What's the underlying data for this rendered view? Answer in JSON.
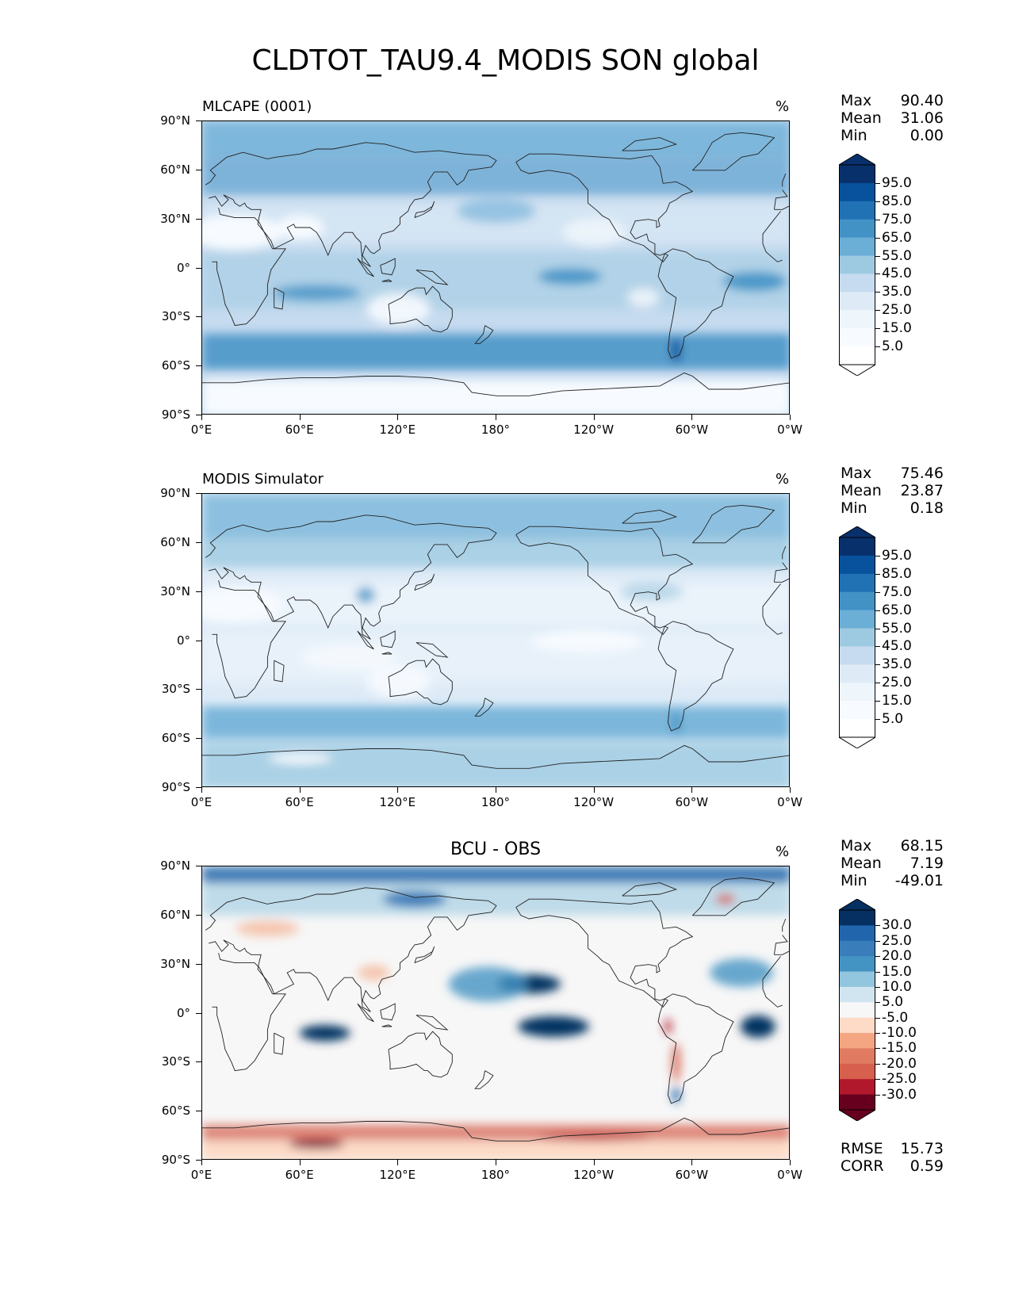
{
  "title": "CLDTOT_TAU9.4_MODIS SON global",
  "panels": [
    {
      "subtitle": "MLCAPE (0001)",
      "center_title": "",
      "units": "%",
      "stats": [
        {
          "label": "Max",
          "value": "90.40"
        },
        {
          "label": "Mean",
          "value": "31.06"
        },
        {
          "label": "Min",
          "value": "0.00"
        }
      ],
      "colorbar": {
        "labels": [
          "95.0",
          "85.0",
          "75.0",
          "65.0",
          "55.0",
          "45.0",
          "35.0",
          "25.0",
          "15.0",
          "5.0"
        ],
        "colors": [
          "#08306b",
          "#08519c",
          "#2171b5",
          "#4292c6",
          "#6baed6",
          "#9ecae1",
          "#c6dbef",
          "#deebf7",
          "#eef5fb",
          "#f7fbff",
          "#ffffff"
        ]
      },
      "extra": []
    },
    {
      "subtitle": "MODIS Simulator",
      "center_title": "",
      "units": "%",
      "stats": [
        {
          "label": "Max",
          "value": "75.46"
        },
        {
          "label": "Mean",
          "value": "23.87"
        },
        {
          "label": "Min",
          "value": "0.18"
        }
      ],
      "colorbar": {
        "labels": [
          "95.0",
          "85.0",
          "75.0",
          "65.0",
          "55.0",
          "45.0",
          "35.0",
          "25.0",
          "15.0",
          "5.0"
        ],
        "colors": [
          "#08306b",
          "#08519c",
          "#2171b5",
          "#4292c6",
          "#6baed6",
          "#9ecae1",
          "#c6dbef",
          "#deebf7",
          "#eef5fb",
          "#f7fbff",
          "#ffffff"
        ]
      },
      "extra": []
    },
    {
      "subtitle": "",
      "center_title": "BCU - OBS",
      "units": "%",
      "stats": [
        {
          "label": "Max",
          "value": "68.15"
        },
        {
          "label": "Mean",
          "value": "7.19"
        },
        {
          "label": "Min",
          "value": "-49.01"
        }
      ],
      "colorbar": {
        "labels": [
          "30.0",
          "25.0",
          "20.0",
          "15.0",
          "10.0",
          "5.0",
          "-5.0",
          "-10.0",
          "-15.0",
          "-20.0",
          "-25.0",
          "-30.0"
        ],
        "colors": [
          "#053061",
          "#2166ac",
          "#3a7dbb",
          "#4393c3",
          "#92c5de",
          "#d1e5f0",
          "#f7f7f7",
          "#fddbc7",
          "#f4a582",
          "#e07b61",
          "#d6604d",
          "#b2182b",
          "#67001f"
        ]
      },
      "extra": [
        {
          "label": "RMSE",
          "value": "15.73"
        },
        {
          "label": "CORR",
          "value": "0.59"
        }
      ]
    }
  ],
  "axes": {
    "x_ticks": [
      "0°E",
      "60°E",
      "120°E",
      "180°",
      "120°W",
      "60°W",
      "0°W"
    ],
    "y_ticks": [
      "90°N",
      "60°N",
      "30°N",
      "0°",
      "30°S",
      "60°S",
      "90°S"
    ]
  },
  "chart_data": [
    {
      "type": "heatmap",
      "title": "MLCAPE (0001)",
      "units": "%",
      "x_ticks": [
        "0°E",
        "60°E",
        "120°E",
        "180°",
        "120°W",
        "60°W",
        "0°W"
      ],
      "y_ticks": [
        "90°N",
        "60°N",
        "30°N",
        "0°",
        "30°S",
        "60°S",
        "90°S"
      ],
      "levels": [
        5,
        15,
        25,
        35,
        45,
        55,
        65,
        75,
        85,
        95
      ],
      "stats": {
        "max": 90.4,
        "mean": 31.06,
        "min": 0.0
      }
    },
    {
      "type": "heatmap",
      "title": "MODIS Simulator",
      "units": "%",
      "x_ticks": [
        "0°E",
        "60°E",
        "120°E",
        "180°",
        "120°W",
        "60°W",
        "0°W"
      ],
      "y_ticks": [
        "90°N",
        "60°N",
        "30°N",
        "0°",
        "30°S",
        "60°S",
        "90°S"
      ],
      "levels": [
        5,
        15,
        25,
        35,
        45,
        55,
        65,
        75,
        85,
        95
      ],
      "stats": {
        "max": 75.46,
        "mean": 23.87,
        "min": 0.18
      }
    },
    {
      "type": "heatmap",
      "title": "BCU - OBS",
      "units": "%",
      "x_ticks": [
        "0°E",
        "60°E",
        "120°E",
        "180°",
        "120°W",
        "60°W",
        "0°W"
      ],
      "y_ticks": [
        "90°N",
        "60°N",
        "30°N",
        "0°",
        "30°S",
        "60°S",
        "90°S"
      ],
      "levels": [
        -30,
        -25,
        -20,
        -15,
        -10,
        -5,
        5,
        10,
        15,
        20,
        25,
        30
      ],
      "stats": {
        "max": 68.15,
        "mean": 7.19,
        "min": -49.01,
        "rmse": 15.73,
        "corr": 0.59
      }
    }
  ]
}
